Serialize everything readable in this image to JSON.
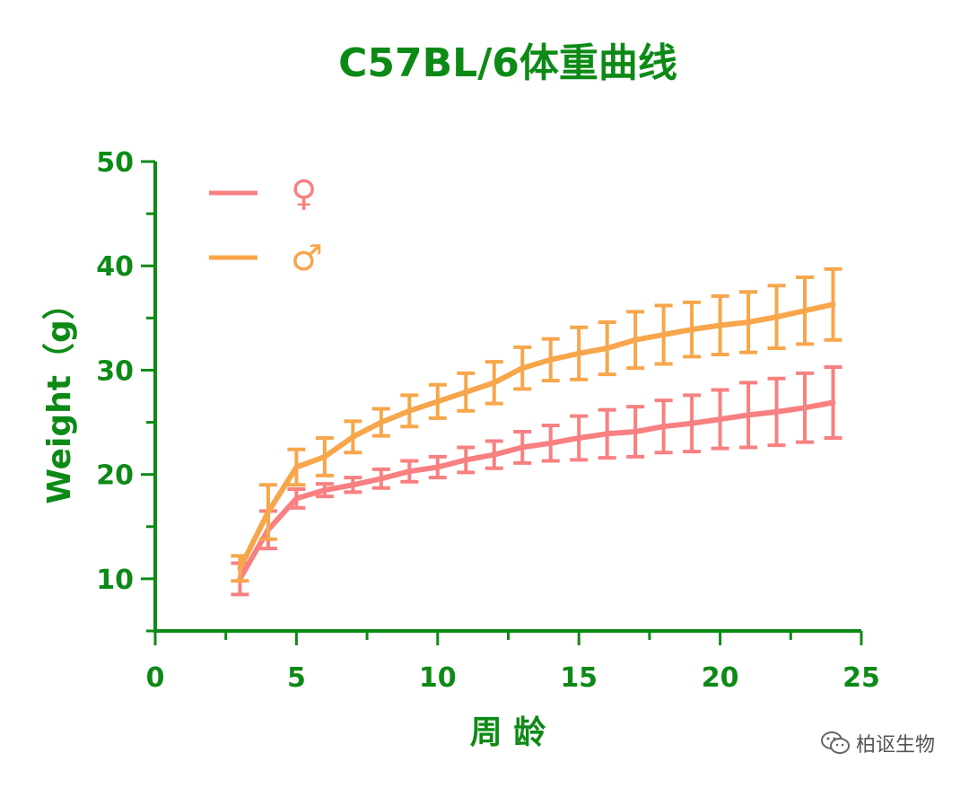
{
  "chart_data": {
    "type": "line",
    "title": "C57BL/6体重曲线",
    "xlabel": "周 龄",
    "ylabel": "Weight（g）",
    "xlim": [
      0,
      25
    ],
    "ylim": [
      5,
      50
    ],
    "xticks": [
      0,
      5,
      10,
      15,
      20,
      25
    ],
    "yticks": [
      10,
      20,
      30,
      40,
      50
    ],
    "x_minor_step": 2.5,
    "y_minor_step": 5,
    "legend_position": "top-left",
    "grid": false,
    "x": [
      3,
      4,
      5,
      6,
      7,
      8,
      9,
      10,
      11,
      12,
      13,
      14,
      15,
      16,
      17,
      18,
      19,
      20,
      21,
      22,
      23,
      24
    ],
    "series": [
      {
        "name": "♀",
        "color": "#f88080",
        "values": [
          10.0,
          14.7,
          17.7,
          18.5,
          19.0,
          19.6,
          20.3,
          20.7,
          21.4,
          21.9,
          22.6,
          23.0,
          23.5,
          23.9,
          24.1,
          24.6,
          24.9,
          25.3,
          25.7,
          26.0,
          26.4,
          26.9
        ],
        "errors": [
          1.5,
          1.8,
          0.9,
          0.6,
          0.7,
          0.9,
          1.0,
          1.0,
          1.2,
          1.3,
          1.5,
          1.7,
          2.1,
          2.3,
          2.4,
          2.5,
          2.7,
          2.8,
          3.1,
          3.2,
          3.3,
          3.4
        ]
      },
      {
        "name": "♂",
        "color": "#f7a64b",
        "values": [
          11.0,
          16.4,
          20.7,
          21.7,
          23.6,
          25.0,
          26.1,
          27.0,
          27.9,
          28.8,
          30.2,
          31.0,
          31.6,
          32.1,
          32.9,
          33.4,
          33.9,
          34.3,
          34.6,
          35.1,
          35.7,
          36.3
        ],
        "errors": [
          1.2,
          2.6,
          1.7,
          1.8,
          1.5,
          1.3,
          1.5,
          1.6,
          1.8,
          2.0,
          2.0,
          2.0,
          2.5,
          2.5,
          2.7,
          2.8,
          2.6,
          2.8,
          2.9,
          3.0,
          3.2,
          3.4
        ]
      }
    ]
  },
  "axis_color": "#0d8a16",
  "watermark": {
    "icon": "wechat-icon",
    "text": "柏讴生物"
  }
}
